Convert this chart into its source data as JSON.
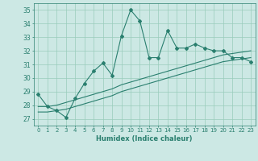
{
  "xlabel": "Humidex (Indice chaleur)",
  "ylabel": "",
  "background_color": "#cce8e4",
  "grid_color": "#99ccbb",
  "line_color": "#2a7f6f",
  "xlim": [
    -0.5,
    23.5
  ],
  "ylim": [
    26.5,
    35.5
  ],
  "yticks": [
    27,
    28,
    29,
    30,
    31,
    32,
    33,
    34,
    35
  ],
  "xticks": [
    0,
    1,
    2,
    3,
    4,
    5,
    6,
    7,
    8,
    9,
    10,
    11,
    12,
    13,
    14,
    15,
    16,
    17,
    18,
    19,
    20,
    21,
    22,
    23
  ],
  "main_y": [
    28.8,
    27.9,
    27.6,
    27.1,
    28.5,
    29.6,
    30.5,
    31.1,
    30.2,
    33.1,
    35.0,
    34.2,
    31.5,
    31.5,
    33.5,
    32.2,
    32.2,
    32.5,
    32.2,
    32.0,
    32.0,
    31.5,
    31.5,
    31.2
  ],
  "line1_y": [
    27.9,
    27.9,
    28.0,
    28.2,
    28.4,
    28.6,
    28.8,
    29.0,
    29.2,
    29.5,
    29.7,
    29.9,
    30.1,
    30.3,
    30.5,
    30.7,
    30.9,
    31.1,
    31.3,
    31.5,
    31.7,
    31.8,
    31.9,
    32.0
  ],
  "line2_y": [
    27.5,
    27.5,
    27.6,
    27.7,
    27.9,
    28.1,
    28.3,
    28.5,
    28.7,
    29.0,
    29.2,
    29.4,
    29.6,
    29.8,
    30.0,
    30.2,
    30.4,
    30.6,
    30.8,
    31.0,
    31.2,
    31.3,
    31.4,
    31.5
  ]
}
